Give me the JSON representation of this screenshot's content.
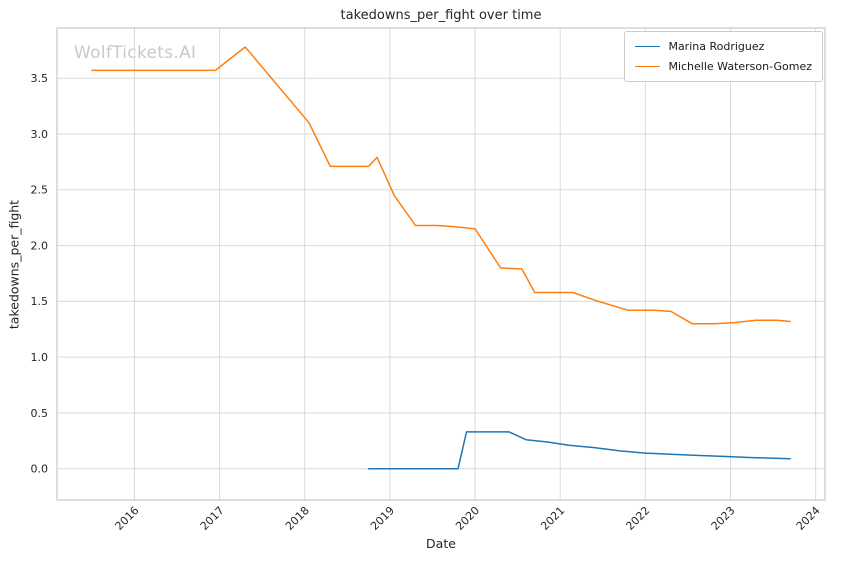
{
  "watermark": "WolfTickets.AI",
  "chart_data": {
    "type": "line",
    "title": "takedowns_per_fight over time",
    "xlabel": "Date",
    "ylabel": "takedowns_per_fight",
    "grid": true,
    "legend_position": "upper right",
    "xlim": [
      2015.09,
      2024.11
    ],
    "ylim": [
      -0.28,
      3.95
    ],
    "x_ticks": [
      2016,
      2017,
      2018,
      2019,
      2020,
      2021,
      2022,
      2023,
      2024
    ],
    "x_tick_labels": [
      "2016",
      "2017",
      "2018",
      "2019",
      "2020",
      "2021",
      "2022",
      "2023",
      "2024"
    ],
    "y_ticks": [
      0.0,
      0.5,
      1.0,
      1.5,
      2.0,
      2.5,
      3.0,
      3.5
    ],
    "y_tick_labels": [
      "0.0",
      "0.5",
      "1.0",
      "1.5",
      "2.0",
      "2.5",
      "3.0",
      "3.5"
    ],
    "series": [
      {
        "name": "Marina Rodriguez",
        "color": "#1f77b4",
        "x": [
          2018.75,
          2019.1,
          2019.5,
          2019.8,
          2019.9,
          2020.15,
          2020.4,
          2020.6,
          2020.85,
          2021.1,
          2021.4,
          2021.7,
          2022.0,
          2022.3,
          2022.6,
          2022.95,
          2023.25,
          2023.7
        ],
        "y": [
          0.0,
          0.0,
          0.0,
          0.0,
          0.33,
          0.33,
          0.33,
          0.26,
          0.24,
          0.21,
          0.19,
          0.16,
          0.14,
          0.13,
          0.12,
          0.11,
          0.1,
          0.09
        ]
      },
      {
        "name": "Michelle Waterson-Gomez",
        "color": "#ff7f0e",
        "x": [
          2015.5,
          2016.95,
          2017.3,
          2018.05,
          2018.3,
          2018.75,
          2018.85,
          2019.05,
          2019.3,
          2019.55,
          2019.75,
          2020.0,
          2020.3,
          2020.55,
          2020.7,
          2020.9,
          2021.15,
          2021.45,
          2021.8,
          2022.1,
          2022.3,
          2022.55,
          2022.8,
          2023.05,
          2023.3,
          2023.55,
          2023.7
        ],
        "y": [
          3.57,
          3.57,
          3.78,
          3.1,
          2.71,
          2.71,
          2.79,
          2.45,
          2.18,
          2.18,
          2.17,
          2.15,
          1.8,
          1.79,
          1.58,
          1.58,
          1.58,
          1.5,
          1.42,
          1.42,
          1.41,
          1.3,
          1.3,
          1.31,
          1.33,
          1.33,
          1.32
        ]
      }
    ]
  }
}
